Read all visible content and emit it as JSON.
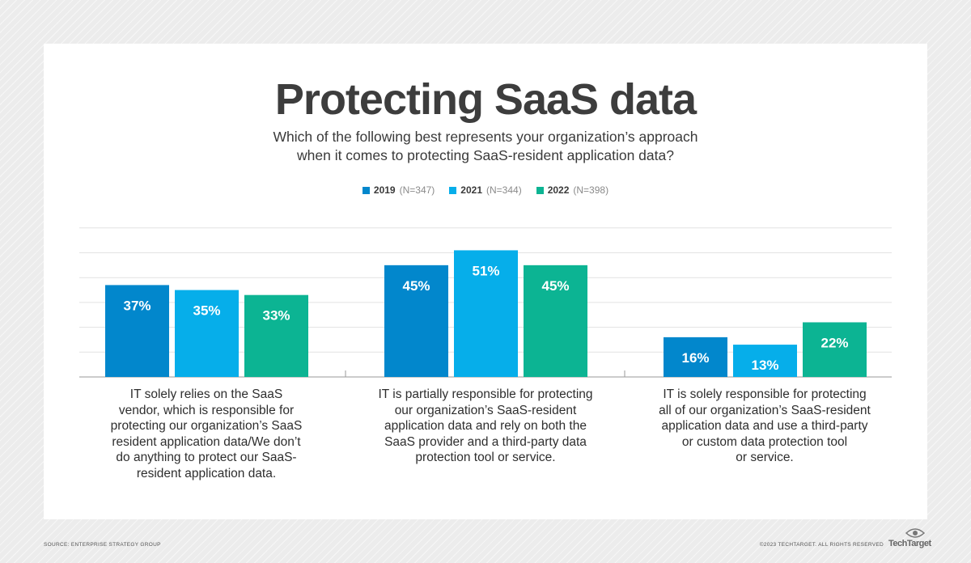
{
  "title": "Protecting SaaS data",
  "subtitle_line1": "Which of the following best represents your organization’s approach",
  "subtitle_line2": "when it comes to protecting SaaS-resident application data?",
  "legend": [
    {
      "year": "2019",
      "n": "(N=347)",
      "color": "#0287cc"
    },
    {
      "year": "2021",
      "n": "(N=344)",
      "color": "#06aeea"
    },
    {
      "year": "2022",
      "n": "(N=398)",
      "color": "#0cb493"
    }
  ],
  "chart_data": {
    "type": "bar",
    "title": "Protecting SaaS data",
    "categories": [
      "IT solely relies on the SaaS vendor, which is responsible for protecting our organization’s SaaS resident application data/We don’t do anything to protect our SaaS-resident application data.",
      "IT is partially responsible for protecting our organization’s SaaS-resident application data and rely on both the SaaS provider and a third-party data protection tool or service.",
      "IT is solely responsible for protecting all of our organization’s SaaS-resident application data and use a third-party or custom data protection tool or service."
    ],
    "series": [
      {
        "name": "2019 (N=347)",
        "values": [
          37,
          45,
          16
        ]
      },
      {
        "name": "2021 (N=344)",
        "values": [
          35,
          51,
          13
        ]
      },
      {
        "name": "2022 (N=398)",
        "values": [
          33,
          45,
          22
        ]
      }
    ],
    "value_suffix": "%",
    "ylim": [
      0,
      60
    ],
    "grid": true,
    "legend_position": "top-center"
  },
  "category_labels": [
    [
      "IT solely relies on the SaaS",
      "vendor, which is responsible for",
      "protecting our organization’s SaaS",
      "resident application data/We don’t",
      "do anything to protect our SaaS-",
      "resident application data."
    ],
    [
      "IT is partially responsible for protecting",
      "our organization’s SaaS-resident",
      "application data and rely on both the",
      "SaaS provider and a third-party data",
      "protection tool or service."
    ],
    [
      "IT is solely responsible for protecting",
      "all of our organization’s SaaS-resident",
      "application data and use a third-party",
      "or custom data protection tool",
      "or service."
    ]
  ],
  "footer": {
    "source": "SOURCE: ENTERPRISE STRATEGY GROUP",
    "copyright": "©2023 TECHTARGET. ALL RIGHTS RESERVED",
    "brand": "TechTarget"
  }
}
